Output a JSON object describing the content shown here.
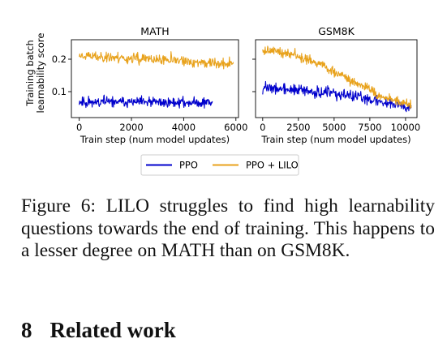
{
  "figure": {
    "legend": [
      {
        "label": "PPO",
        "color": "#0000cc"
      },
      {
        "label": "PPO + LILO",
        "color": "#e8a21c"
      }
    ],
    "ylabel_line1": "Training batch",
    "ylabel_line2": "learnability score"
  },
  "chart_data": [
    {
      "type": "line",
      "title": "MATH",
      "xlabel": "Train step (num model updates)",
      "ylabel": "Training batch learnability score",
      "xlim": [
        -300,
        6100
      ],
      "ylim": [
        0.02,
        0.26
      ],
      "x_ticks": [
        0,
        2000,
        4000,
        6000
      ],
      "x_tick_labels": [
        "0",
        "2000",
        "4000",
        "6000"
      ],
      "y_ticks": [
        0.1,
        0.2
      ],
      "y_tick_labels": [
        "0.1",
        "0.2"
      ],
      "grid": false,
      "series": [
        {
          "name": "PPO",
          "color": "#0000cc",
          "x_range": [
            0,
            5100
          ],
          "points": 300,
          "trend": [
            [
              0,
              0.069
            ],
            [
              0.5,
              0.067
            ],
            [
              1,
              0.066
            ]
          ],
          "noise": 0.011,
          "seed": 11
        },
        {
          "name": "PPO + LILO",
          "color": "#e8a21c",
          "x_range": [
            0,
            5900
          ],
          "points": 320,
          "trend": [
            [
              0,
              0.212
            ],
            [
              0.3,
              0.203
            ],
            [
              0.7,
              0.192
            ],
            [
              1,
              0.185
            ]
          ],
          "noise": 0.011,
          "seed": 23
        }
      ]
    },
    {
      "type": "line",
      "title": "GSM8K",
      "xlabel": "Train step (num model updates)",
      "ylabel": "",
      "xlim": [
        -500,
        10800
      ],
      "ylim": [
        0.02,
        0.26
      ],
      "x_ticks": [
        0,
        2500,
        5000,
        7500,
        10000
      ],
      "x_tick_labels": [
        "0",
        "2500",
        "5000",
        "7500",
        "10000"
      ],
      "y_ticks": [
        0.1,
        0.2
      ],
      "y_tick_labels": [
        "",
        ""
      ],
      "grid": false,
      "series": [
        {
          "name": "PPO",
          "color": "#0000cc",
          "x_range": [
            0,
            10400
          ],
          "points": 360,
          "trend": [
            [
              0,
              0.112
            ],
            [
              0.3,
              0.102
            ],
            [
              0.6,
              0.086
            ],
            [
              0.8,
              0.069
            ],
            [
              1,
              0.055
            ]
          ],
          "noise": 0.012,
          "seed": 37
        },
        {
          "name": "PPO + LILO",
          "color": "#e8a21c",
          "x_range": [
            0,
            10400
          ],
          "points": 360,
          "trend": [
            [
              0,
              0.232
            ],
            [
              0.2,
              0.212
            ],
            [
              0.4,
              0.18
            ],
            [
              0.6,
              0.133
            ],
            [
              0.8,
              0.085
            ],
            [
              1,
              0.058
            ]
          ],
          "noise": 0.01,
          "seed": 49
        }
      ]
    }
  ],
  "caption": "Figure 6: LILO struggles to find high learnability questions towards the end of training. This happens to a lesser degree on MATH than on GSM8K.",
  "section": {
    "number": "8",
    "title": "Related work"
  }
}
